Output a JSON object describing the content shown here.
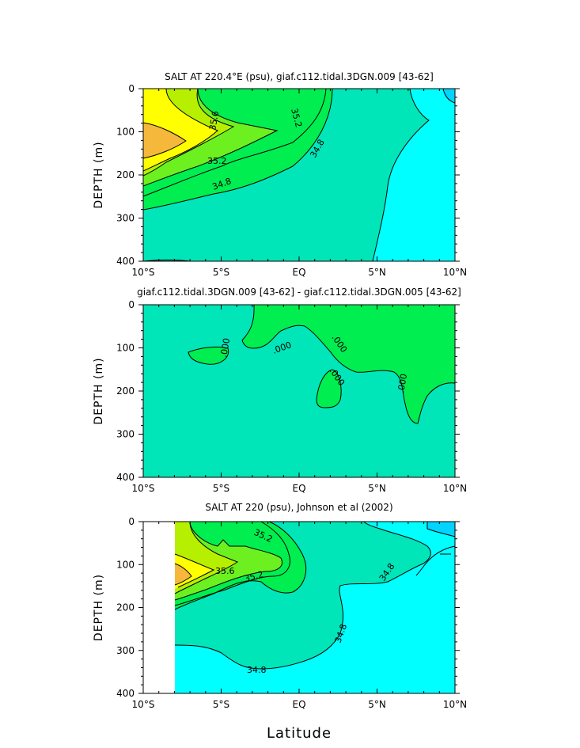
{
  "chart_data": [
    {
      "type": "heatmap",
      "title": "SALT AT 220.4°E (psu), giaf.c112.tidal.3DGN.009 [43-62]",
      "xlabel": "",
      "ylabel": "DEPTH (m)",
      "xlim": [
        -10,
        10
      ],
      "ylim": [
        400,
        0
      ],
      "x_ticks": [
        "10°S",
        "5°S",
        "EQ",
        "5°N",
        "10°N"
      ],
      "y_ticks": [
        "0",
        "100",
        "200",
        "300",
        "400"
      ],
      "contour_labels": [
        "35.2",
        "35.6",
        "35.2",
        "34.8",
        "34.8"
      ],
      "contour_levels": [
        34.6,
        34.8,
        35.0,
        35.2,
        35.4,
        35.6,
        35.8
      ],
      "fill_colors": [
        "#00ffff",
        "#00e6b8",
        "#00ee50",
        "#6cf020",
        "#b6f000",
        "#ffff00",
        "#f5b83a"
      ],
      "series": [
        {
          "name": "34.6",
          "x": [
            10,
            10
          ],
          "y": [
            0,
            400
          ]
        }
      ]
    },
    {
      "type": "heatmap",
      "title": "giaf.c112.tidal.3DGN.009 [43-62] - giaf.c112.tidal.3DGN.005 [43-62]",
      "xlabel": "",
      "ylabel": "DEPTH (m)",
      "xlim": [
        -10,
        10
      ],
      "ylim": [
        400,
        0
      ],
      "x_ticks": [
        "10°S",
        "5°S",
        "EQ",
        "5°N",
        "10°N"
      ],
      "y_ticks": [
        "0",
        "100",
        "200",
        "300",
        "400"
      ],
      "contour_labels": [
        ".000",
        ".000",
        ".000",
        ".000",
        ".000"
      ],
      "contour_levels": [
        0.0
      ],
      "fill_colors": [
        "#00e6b8",
        "#00ee50"
      ]
    },
    {
      "type": "heatmap",
      "title": "SALT AT 220 (psu), Johnson et al (2002)",
      "xlabel": "Latitude",
      "ylabel": "DEPTH (m)",
      "xlim": [
        -10,
        10
      ],
      "ylim": [
        400,
        0
      ],
      "x_ticks": [
        "10°S",
        "5°S",
        "EQ",
        "5°N",
        "10°N"
      ],
      "y_ticks": [
        "0",
        "100",
        "200",
        "300",
        "400"
      ],
      "contour_labels": [
        "35.2",
        "35.6",
        "35.2",
        "34.8",
        "34.8",
        "34.8"
      ],
      "contour_levels": [
        34.4,
        34.6,
        34.8,
        35.0,
        35.2,
        35.4,
        35.6,
        35.8
      ],
      "fill_colors": [
        "#00d4ff",
        "#00ffff",
        "#00e6b8",
        "#00ee50",
        "#6cf020",
        "#b6f000",
        "#ffff00",
        "#f5b83a"
      ]
    }
  ]
}
